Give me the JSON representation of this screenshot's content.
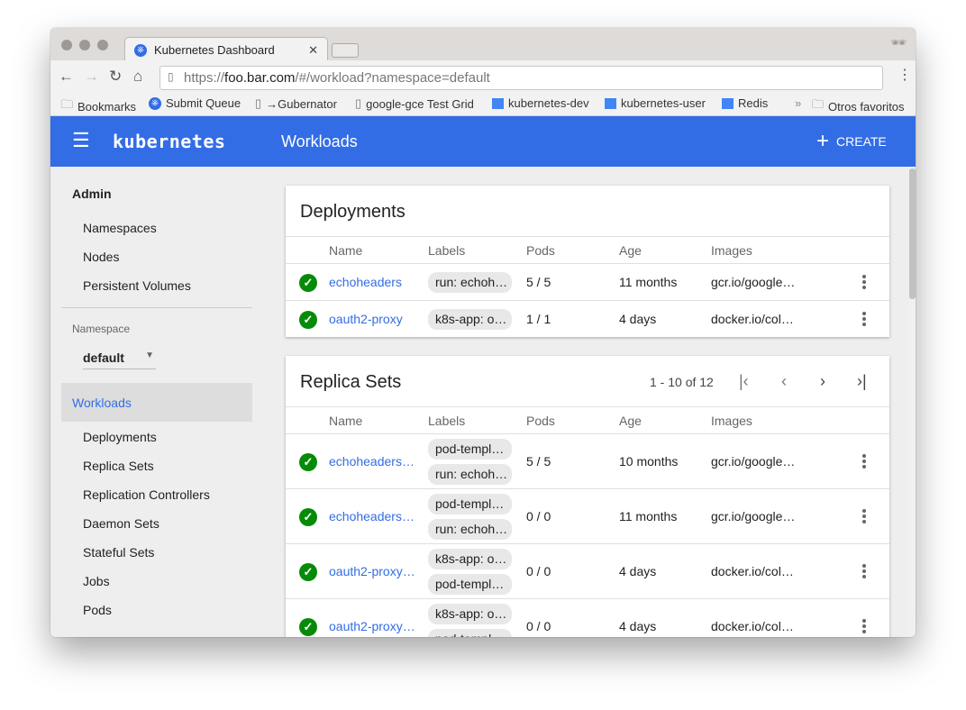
{
  "browser": {
    "tab_title": "Kubernetes Dashboard",
    "url_prefix": "https://",
    "url_host": "foo.bar.com",
    "url_path": "/#/workload?namespace=default",
    "bookmarks": [
      {
        "label": "Bookmarks",
        "icon": "folder-icon"
      },
      {
        "label": "Submit Queue",
        "icon": "kubernetes-icon"
      },
      {
        "label": "→Gubernator",
        "icon": "page-icon"
      },
      {
        "label": "google-gce Test Grid",
        "icon": "page-icon"
      },
      {
        "label": "kubernetes-dev",
        "icon": "group-icon"
      },
      {
        "label": "kubernetes-user",
        "icon": "group-icon"
      },
      {
        "label": "Redis",
        "icon": "group-icon"
      }
    ],
    "overflow": "»",
    "other_bookmarks": "Otros favoritos"
  },
  "app": {
    "brand": "kubernetes",
    "title": "Workloads",
    "create_label": "CREATE",
    "accent": "#326de6"
  },
  "sidebar": {
    "admin": "Admin",
    "admin_items": [
      "Namespaces",
      "Nodes",
      "Persistent Volumes"
    ],
    "namespace_label": "Namespace",
    "namespace_value": "default",
    "workloads": "Workloads",
    "workload_items": [
      "Deployments",
      "Replica Sets",
      "Replication Controllers",
      "Daemon Sets",
      "Stateful Sets",
      "Jobs",
      "Pods"
    ]
  },
  "columns": [
    "Name",
    "Labels",
    "Pods",
    "Age",
    "Images"
  ],
  "deployments": {
    "title": "Deployments",
    "rows": [
      {
        "name": "echoheaders",
        "labels": [
          "run: echoh…"
        ],
        "pods": "5 / 5",
        "age": "11 months",
        "images": "gcr.io/google…"
      },
      {
        "name": "oauth2-proxy",
        "labels": [
          "k8s-app: o…"
        ],
        "pods": "1 / 1",
        "age": "4 days",
        "images": "docker.io/col…"
      }
    ]
  },
  "replica_sets": {
    "title": "Replica Sets",
    "pagination": "1 - 10 of 12",
    "rows": [
      {
        "name": "echoheaders…",
        "labels": [
          "pod-templ…",
          "run: echoh…"
        ],
        "pods": "5 / 5",
        "age": "10 months",
        "images": "gcr.io/google…"
      },
      {
        "name": "echoheaders…",
        "labels": [
          "pod-templ…",
          "run: echoh…"
        ],
        "pods": "0 / 0",
        "age": "11 months",
        "images": "gcr.io/google…"
      },
      {
        "name": "oauth2-proxy…",
        "labels": [
          "k8s-app: o…",
          "pod-templ…"
        ],
        "pods": "0 / 0",
        "age": "4 days",
        "images": "docker.io/col…"
      },
      {
        "name": "oauth2-proxy…",
        "labels": [
          "k8s-app: o…",
          "pod-templ…"
        ],
        "pods": "0 / 0",
        "age": "4 days",
        "images": "docker.io/col…"
      }
    ]
  }
}
